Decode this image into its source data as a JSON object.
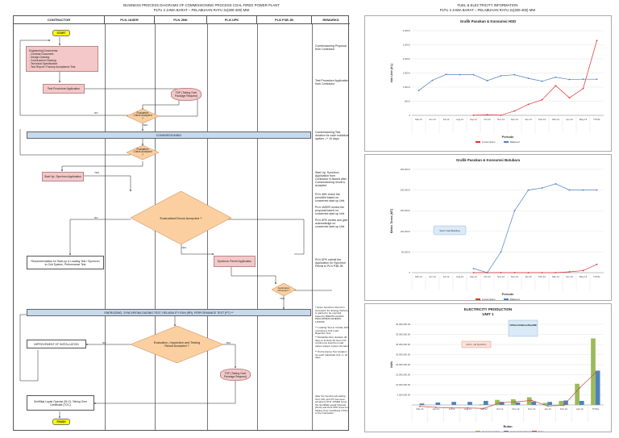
{
  "header": {
    "left_title_1": "BUSINESS PROCESS DIAGRAMS OF COMMISSIONING PROCESS COAL FIRED POWER PLANT",
    "left_title_2": "PLTU 2 JAWA BARAT – PELABUHAN RATU 3x(300-400) MW",
    "right_title_1": "FUEL & ELECTRICITY INFORMATION",
    "right_title_2": "PLTU 2 JAWA BARAT – PELABUHAN RATU 3x(300-400) MW"
  },
  "lanes": [
    "CONTRACTOR",
    "PLN JASER",
    "PLN JMK",
    "PLN UPK",
    "PLN P3B JB",
    "REMARKS"
  ],
  "nodes": {
    "start": "START",
    "eng_docs": "Engineering Documents:\n- Contract Document\n- Design Drawing\n- Construction Drawing\n- Technical Specification\n- Test Report / Factory Acceptance Test",
    "test_proc": "Test Procedure Application",
    "tdp": "TDP (Taking Over Package Request)",
    "eval_check": "Evaluation Check Accepted ?",
    "commissioning": "COMMISSIONING",
    "eval_check2": "Evaluation Check Accepted ?",
    "startup": "Start Up, Synchron Application",
    "eval_big": "Evaluation/Check Accepted ?",
    "recommend": "Recommendation for Start-up & Loading Test / Synchron to Grid System, Performance Test",
    "synchron_permit": "Synchron Permit Application",
    "app_accepted": "Application Accepted ?",
    "energizing": "ENERGIZING, SYNCHRON/LOADING TEST, RELIABILITY RUN (RR), PERFORMANCE TEST (PT) **",
    "improvement": "IMPROVEMENT OF INSTALLATION",
    "eval_insp": "Evaluation, Inspection and Testing Result Accepted ?",
    "tdp2": "TOP (Taking Over Package Request)",
    "slo": "Sertifikat Layak Operasi (SLO), Taking Over Certificate (TOC)",
    "finish": "FINISH",
    "yes": "YES",
    "no": "NO"
  },
  "remarks": [
    "Commissioning Proposal from Contractor",
    "Test Procedure Application from Contractor",
    "Commissioning Test duration for each individual system -/+ 10 days",
    "Start Up, Synchron Application from Contractor is issued after Commissioning result is accepted",
    "PLN JMK check the punchlist based on concerned start up Unit",
    "PLN JASER review the proposal based on concerned start up Unit",
    "PLN UPK review and give acknowledge on concerned start up Unit",
    "PLN UPK submit the Application for Synchron Permit to PLN P3B JB",
    "* Since Synchron Permit is Accepted, the Energy Delivery is started to be counted, based by BERITA ACARA PENGIRIMAN ENERGI LISTRIK",
    "** Loading Test to include 10% overspeed, Full Load Rejection Test",
    "** Reliability Run duration 30 days to include 30 hours full continuous load then load varies subject system demand",
    "** Performance Test duration for each individual Unit -/+ 10 days",
    "After the Synchron/Loading Test, RR, and PT has been accepted, PLN JASER issue the Sertifikat Layak Operasi (SLO) and PLN UPK issue for Taking Over Certificate (TOC) to the Contractor"
  ],
  "chart_data": [
    {
      "type": "line",
      "title": "Grafik Pasokan & Konsumsi HSD",
      "xlabel": "Periode",
      "ylabel": "kilo Liter (KL)",
      "ylim": [
        0,
        3000
      ],
      "yticks": [
        "0",
        "500.0",
        "1,000.0",
        "1,500.0",
        "2,000.0",
        "2,500.0",
        "3,000.0"
      ],
      "categories": [
        "Mar-12",
        "Jun-12",
        "Jul-12",
        "Aug-12",
        "Sep-12",
        "Oct-12",
        "Nov-12",
        "Dec-12",
        "Jan-13",
        "Feb-13",
        "Mar-13",
        "Apr-13",
        "May-13",
        "TOTAL"
      ],
      "series": [
        {
          "name": "Consumption",
          "color": "#e03030",
          "values": [
            null,
            null,
            null,
            null,
            3.7,
            21.4,
            2.6,
            156.7,
            388.1,
            551.6,
            1050.0,
            620.0,
            950.0,
            2650.0
          ]
        },
        {
          "name": "Balanced",
          "color": "#4f81bd",
          "values": [
            880.0,
            1240.0,
            1450.0,
            1440.0,
            1440.0,
            1230.0,
            1400.0,
            1440.0,
            1310.0,
            1210.0,
            1350.0,
            1270.0,
            1280.0,
            1280.0
          ]
        }
      ]
    },
    {
      "type": "line",
      "title": "Grafik Pasokan & Konsumsi Batubara",
      "xlabel": "Periode",
      "ylabel": "Metric Tones (MT)",
      "ylim": [
        0,
        250000
      ],
      "yticks": [
        "0",
        "50,000.0",
        "100,000.0",
        "150,000.0",
        "200,000.0",
        "250,000.0"
      ],
      "categories": [
        "Mar-12",
        "Jun-12",
        "Jul-12",
        "Aug-12",
        "Sep-12",
        "Oct-12",
        "Nov-12",
        "Dec-12",
        "Jan-13",
        "Feb-13",
        "Mar-13",
        "Apr-13",
        "May-13",
        "TOTAL"
      ],
      "annotation": "Start Coal Bedding",
      "series": [
        {
          "name": "Consumption",
          "color": "#e03030",
          "values": [
            null,
            null,
            null,
            null,
            0,
            0,
            0,
            0,
            0,
            0,
            0,
            2000,
            5000,
            20000
          ]
        },
        {
          "name": "Balanced",
          "color": "#4f81bd",
          "values": [
            null,
            null,
            null,
            null,
            10000,
            0,
            50000,
            150000,
            200000,
            205000,
            215000,
            200000,
            200000,
            200000
          ]
        }
      ]
    },
    {
      "type": "bar",
      "title": "ELECTRICITY PRODUCTION",
      "subtitle": "UNIT 1",
      "xlabel": "Bulan",
      "ylabel": "kWh",
      "ylim": [
        0,
        40000000
      ],
      "yticks": [
        "-",
        "5,000,000.00",
        "10,000,000.00",
        "15,000,000.00",
        "20,000,000.00",
        "25,000,000.00",
        "30,000,000.00",
        "35,000,000.00",
        "40,000,000.00"
      ],
      "categories": [
        "Mar-12",
        "Jun-12",
        "Jul-12",
        "Aug-12",
        "Sep-12",
        "Oct-12",
        "Nov-12",
        "Dec-12",
        "Jan-13",
        "Feb-13",
        "Apr-13",
        "TOTAL"
      ],
      "annotations": [
        "Unit 1, 1st Synchron",
        "Unit 1 Shutdown For Maintenance of Request of Boiler"
      ],
      "series": [
        {
          "name": "Gross Generation",
          "color": "#9bbb59",
          "values": [
            0,
            0,
            0,
            0,
            300000,
            2500000,
            2800000,
            3800000,
            1000000,
            2000000,
            10500000,
            33000000
          ]
        },
        {
          "name": "Consumption From Grid",
          "color": "#4f81bd",
          "values": [
            700000,
            1200000,
            1500000,
            1500000,
            2000000,
            1500000,
            1200000,
            1600000,
            1500000,
            2200000,
            2000000,
            17000000
          ]
        },
        {
          "name": "Netto",
          "color": "#c0504d",
          "values": [
            -700000,
            -1200000,
            -1500000,
            -1500000,
            -1700000,
            1000000,
            1600000,
            2200000,
            -500000,
            -200000,
            8500000,
            16000000
          ]
        }
      ]
    }
  ]
}
